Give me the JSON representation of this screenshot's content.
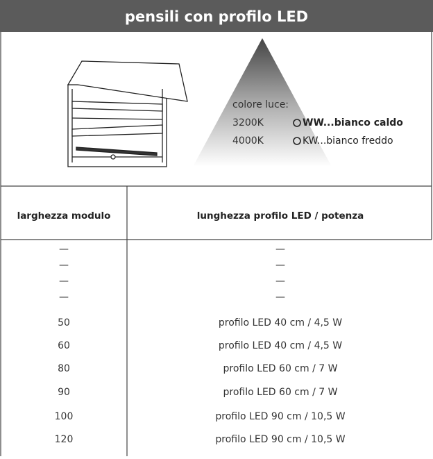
{
  "header": {
    "title": "pensili con profilo LED"
  },
  "legend": {
    "label": "colore luce:",
    "items": [
      {
        "temp": "3200K",
        "name": "WW...bianco caldo"
      },
      {
        "temp": "4000K",
        "name": "KW...bianco freddo"
      }
    ]
  },
  "table": {
    "columns": [
      "larghezza modulo",
      "lunghezza profilo LED / potenza"
    ],
    "rows": [
      [
        "—",
        "—"
      ],
      [
        "—",
        "—"
      ],
      [
        "—",
        "—"
      ],
      [
        "—",
        "—"
      ],
      [
        "50",
        "profilo LED 40 cm / 4,5 W"
      ],
      [
        "60",
        "profilo LED 40 cm / 4,5 W"
      ],
      [
        "80",
        "profilo LED 60 cm / 7 W"
      ],
      [
        "90",
        "profilo LED 60 cm / 7 W"
      ],
      [
        "100",
        "profilo LED 90 cm / 10,5 W"
      ],
      [
        "120",
        "profilo LED 90 cm / 10,5 W"
      ]
    ]
  }
}
